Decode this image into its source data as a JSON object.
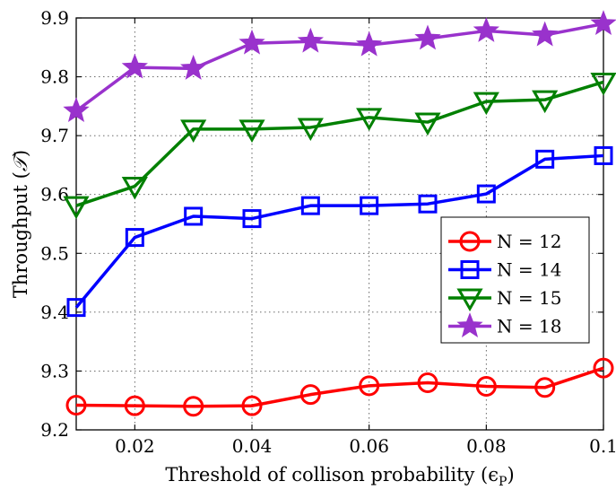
{
  "chart_data": {
    "type": "line",
    "xlabel": "Threshold of collison probability (ϵ",
    "xlabel_sub": "P",
    "xlabel_close": ")",
    "ylabel": "Throughput (",
    "ylabel_symbol": "𝒯",
    "ylabel_close": ")",
    "xlim": [
      0.01,
      0.1
    ],
    "ylim": [
      9.2,
      9.9
    ],
    "xticks": [
      0.02,
      0.04,
      0.06,
      0.08,
      0.1
    ],
    "xtick_labels": [
      "0.02",
      "0.04",
      "0.06",
      "0.08",
      "0.1"
    ],
    "yticks": [
      9.2,
      9.3,
      9.4,
      9.5,
      9.6,
      9.7,
      9.8,
      9.9
    ],
    "ytick_labels": [
      "9.2",
      "9.3",
      "9.4",
      "9.5",
      "9.6",
      "9.7",
      "9.8",
      "9.9"
    ],
    "grid": true,
    "legend_position": "center-right",
    "x": [
      0.01,
      0.02,
      0.03,
      0.04,
      0.05,
      0.06,
      0.07,
      0.08,
      0.09,
      0.1
    ],
    "series": [
      {
        "name": "N = 12",
        "color": "#ff0000",
        "marker": "circle",
        "values": [
          9.242,
          9.241,
          9.24,
          9.241,
          9.26,
          9.275,
          9.28,
          9.274,
          9.272,
          9.305
        ]
      },
      {
        "name": "N = 14",
        "color": "#0000ff",
        "marker": "square",
        "values": [
          9.408,
          9.527,
          9.563,
          9.559,
          9.581,
          9.581,
          9.584,
          9.601,
          9.66,
          9.666
        ]
      },
      {
        "name": "N = 15",
        "color": "#008000",
        "marker": "triangle-down",
        "values": [
          9.581,
          9.614,
          9.711,
          9.711,
          9.714,
          9.731,
          9.723,
          9.758,
          9.761,
          9.791
        ]
      },
      {
        "name": "N = 18",
        "color": "#9932cc",
        "marker": "star",
        "values": [
          9.742,
          9.816,
          9.814,
          9.857,
          9.86,
          9.854,
          9.865,
          9.878,
          9.871,
          9.89
        ]
      }
    ]
  }
}
